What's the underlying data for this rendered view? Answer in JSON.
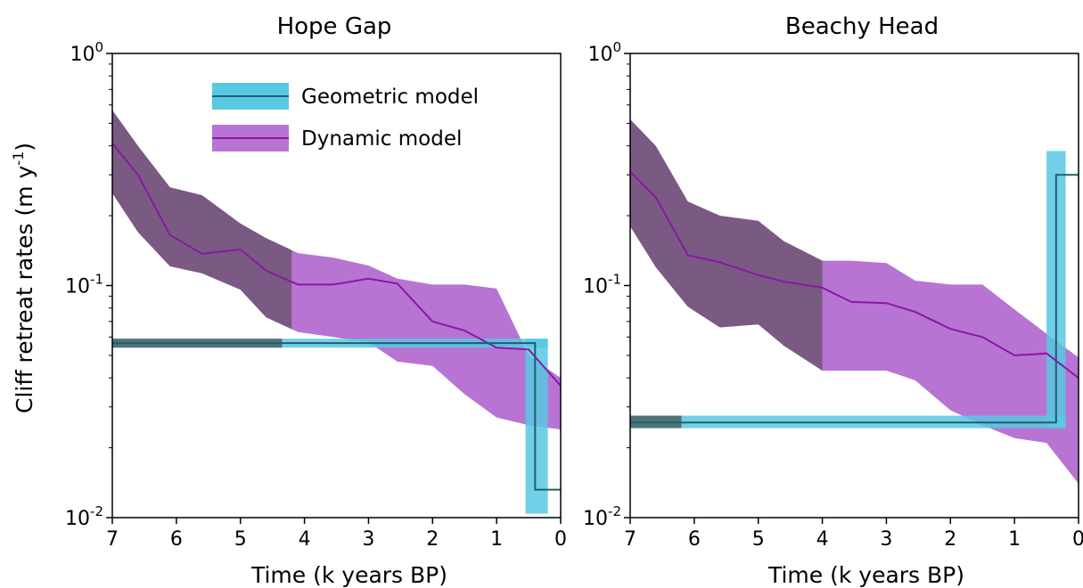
{
  "figure": {
    "ylabel": "Cliff retreat rates (m y",
    "ylabel_sup": "-1",
    "ylabel_close": ")",
    "xlabel": "Time (k years BP)"
  },
  "legend": {
    "placement": "top-right of left panel",
    "items": [
      {
        "label": "Geometric model",
        "color": "#1fa7cf"
      },
      {
        "label": "Dynamic model",
        "color": "#8c1fa0"
      }
    ]
  },
  "colors": {
    "geometric_line": "#1f5f6f",
    "geometric_band": "#58c8e3",
    "dynamic_line": "#8a17a8",
    "dynamic_band": "#b874d2",
    "dynamic_band_overlap": "#7a5a82",
    "geometric_band_overlap": "#4f7378"
  },
  "chart_data": [
    {
      "type": "line",
      "title": "Hope Gap",
      "xlabel": "Time (k years BP)",
      "ylabel": "Cliff retreat rates (m y-1)",
      "xlim": [
        7,
        0
      ],
      "ylim": [
        0.01,
        1
      ],
      "yscale": "log",
      "xticks": [
        "7",
        "6",
        "5",
        "4",
        "3",
        "2",
        "1",
        "0"
      ],
      "yticks": [
        {
          "base": "10",
          "exp": "0",
          "value": 1
        },
        {
          "base": "10",
          "exp": "-1",
          "value": 0.1
        },
        {
          "base": "10",
          "exp": "-2",
          "value": 0.01
        }
      ],
      "series": [
        {
          "name": "Dynamic model",
          "x": [
            7,
            6.6,
            6.1,
            5.6,
            5.0,
            4.6,
            4.1,
            3.55,
            3.0,
            2.55,
            2.0,
            1.5,
            1.0,
            0.5,
            0
          ],
          "y": [
            0.41,
            0.3,
            0.165,
            0.137,
            0.143,
            0.116,
            0.101,
            0.101,
            0.107,
            0.102,
            0.07,
            0.064,
            0.054,
            0.053,
            0.037
          ],
          "lower": [
            0.25,
            0.17,
            0.121,
            0.113,
            0.096,
            0.073,
            0.063,
            0.06,
            0.057,
            0.047,
            0.045,
            0.034,
            0.027,
            0.025,
            0.024
          ],
          "upper": [
            0.57,
            0.4,
            0.265,
            0.245,
            0.185,
            0.16,
            0.138,
            0.132,
            0.122,
            0.107,
            0.101,
            0.101,
            0.097,
            0.05,
            0.04
          ],
          "shaded_older_than": 4.2
        },
        {
          "name": "Geometric model",
          "x": [
            7,
            0.4,
            0.4,
            0
          ],
          "y": [
            0.0565,
            0.0565,
            0.0132,
            0.0132
          ],
          "lower": [
            0.054,
            0.054,
            0.0104,
            0.0104
          ],
          "upper": [
            0.059,
            0.059,
            0.059,
            0.059
          ],
          "step_x": 0.4,
          "band_extent_x": [
            0.2,
            0.55
          ],
          "shaded_older_than": 4.35
        }
      ]
    },
    {
      "type": "line",
      "title": "Beachy Head",
      "xlabel": "Time (k years BP)",
      "ylabel": "Cliff retreat rates (m y-1)",
      "xlim": [
        7,
        0
      ],
      "ylim": [
        0.01,
        1
      ],
      "yscale": "log",
      "xticks": [
        "7",
        "6",
        "5",
        "4",
        "3",
        "2",
        "1",
        "0"
      ],
      "yticks": [
        {
          "base": "10",
          "exp": "0",
          "value": 1
        },
        {
          "base": "10",
          "exp": "-1",
          "value": 0.1
        },
        {
          "base": "10",
          "exp": "-2",
          "value": 0.01
        }
      ],
      "series": [
        {
          "name": "Dynamic model",
          "x": [
            7,
            6.6,
            6.1,
            5.6,
            5.0,
            4.6,
            4.0,
            3.55,
            3.0,
            2.55,
            2.0,
            1.5,
            1.0,
            0.5,
            0
          ],
          "y": [
            0.31,
            0.24,
            0.135,
            0.126,
            0.111,
            0.104,
            0.098,
            0.085,
            0.084,
            0.077,
            0.065,
            0.06,
            0.05,
            0.051,
            0.04
          ],
          "lower": [
            0.18,
            0.12,
            0.081,
            0.066,
            0.068,
            0.055,
            0.043,
            0.043,
            0.043,
            0.039,
            0.029,
            0.025,
            0.022,
            0.021,
            0.014
          ],
          "upper": [
            0.52,
            0.4,
            0.23,
            0.2,
            0.19,
            0.155,
            0.128,
            0.128,
            0.125,
            0.105,
            0.101,
            0.101,
            0.079,
            0.062,
            0.049
          ],
          "shaded_older_than": 4.0
        },
        {
          "name": "Geometric model",
          "x": [
            7,
            0.35,
            0.35,
            0
          ],
          "y": [
            0.0257,
            0.0257,
            0.3,
            0.3
          ],
          "lower": [
            0.0243,
            0.0243,
            0.0243,
            0.2
          ],
          "upper": [
            0.0275,
            0.0275,
            0.38,
            0.38
          ],
          "step_x": 0.35,
          "band_extent_x": [
            0.2,
            0.5
          ],
          "shaded_older_than": 6.2
        }
      ]
    }
  ]
}
